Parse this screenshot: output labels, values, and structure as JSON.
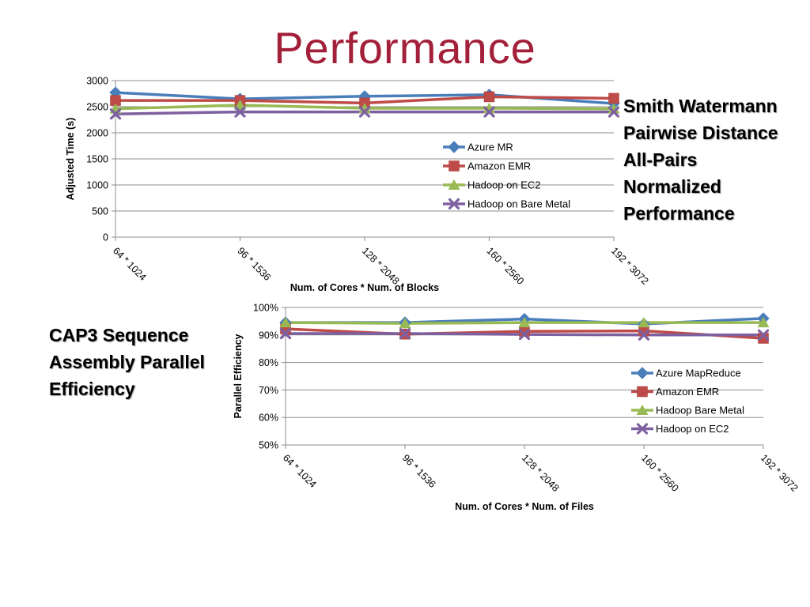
{
  "slide": {
    "title": "Performance",
    "caption_top": [
      "Smith Watermann",
      "Pairwise Distance",
      "All-Pairs",
      "Normalized",
      "Performance"
    ],
    "caption_bottom": [
      "CAP3 Sequence",
      "Assembly Parallel",
      "Efficiency"
    ]
  },
  "chart_data": [
    {
      "type": "line",
      "title": "",
      "xlabel": "Num. of Cores * Num. of Blocks",
      "ylabel": "Adjusted Time (s)",
      "categories": [
        "64 * 1024",
        "96 * 1536",
        "128 * 2048",
        "160 * 2560",
        "192 * 3072"
      ],
      "ylim": [
        0,
        3000
      ],
      "yticks": [
        0,
        500,
        1000,
        1500,
        2000,
        2500,
        3000
      ],
      "ytick_labels": [
        "0",
        "500",
        "1000",
        "1500",
        "2000",
        "2500",
        "3000"
      ],
      "grid": true,
      "legend_position": "right",
      "series": [
        {
          "name": "Azure MR",
          "color": "#4a7ebb",
          "marker": "diamond",
          "values": [
            2770,
            2650,
            2700,
            2730,
            2560
          ]
        },
        {
          "name": "Amazon EMR",
          "color": "#be4b48",
          "marker": "square",
          "values": [
            2620,
            2620,
            2570,
            2690,
            2660
          ]
        },
        {
          "name": "Hadoop on EC2",
          "color": "#98b954",
          "marker": "triangle",
          "values": [
            2460,
            2530,
            2470,
            2470,
            2460
          ]
        },
        {
          "name": "Hadoop on Bare Metal",
          "color": "#7d60a0",
          "marker": "x",
          "values": [
            2360,
            2400,
            2400,
            2400,
            2400
          ]
        }
      ]
    },
    {
      "type": "line",
      "title": "",
      "xlabel": "Num. of Cores * Num. of Files",
      "ylabel": "Parallel Efficiency",
      "categories": [
        "64 * 1024",
        "96 * 1536",
        "128 * 2048",
        "160 * 2560",
        "192 * 3072"
      ],
      "ylim": [
        0.5,
        1.0
      ],
      "yticks": [
        0.5,
        0.6,
        0.7,
        0.8,
        0.9,
        1.0
      ],
      "ytick_labels": [
        "50%",
        "60%",
        "70%",
        "80%",
        "90%",
        "100%"
      ],
      "grid": true,
      "legend_position": "right",
      "series": [
        {
          "name": "Azure MapReduce",
          "color": "#4a7ebb",
          "marker": "diamond",
          "values": [
            0.945,
            0.945,
            0.958,
            0.94,
            0.96
          ]
        },
        {
          "name": "Amazon EMR",
          "color": "#be4b48",
          "marker": "square",
          "values": [
            0.922,
            0.903,
            0.913,
            0.915,
            0.888
          ]
        },
        {
          "name": "Hadoop Bare Metal",
          "color": "#98b954",
          "marker": "triangle",
          "values": [
            0.945,
            0.942,
            0.945,
            0.945,
            0.945
          ]
        },
        {
          "name": "Hadoop on EC2",
          "color": "#7d60a0",
          "marker": "x",
          "values": [
            0.905,
            0.905,
            0.902,
            0.9,
            0.9
          ]
        }
      ]
    }
  ]
}
